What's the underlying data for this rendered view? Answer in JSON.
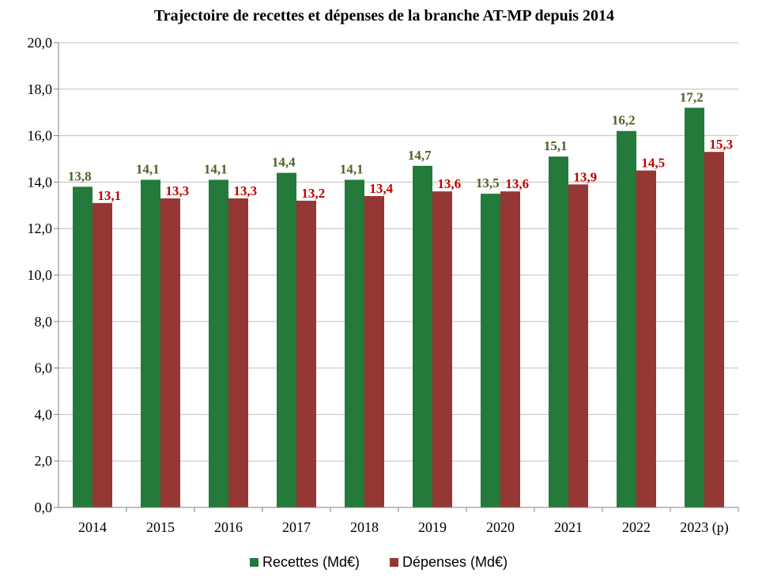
{
  "chart_data": {
    "type": "bar",
    "title": "Trajectoire de recettes et dépenses de la branche AT-MP depuis 2014",
    "categories": [
      "2014",
      "2015",
      "2016",
      "2017",
      "2018",
      "2019",
      "2020",
      "2021",
      "2022",
      "2023 (p)"
    ],
    "series": [
      {
        "name": "Recettes (Md€)",
        "color": "#237A3A",
        "label_color": "#4F6228",
        "values": [
          13.8,
          14.1,
          14.1,
          14.4,
          14.1,
          14.7,
          13.5,
          15.1,
          16.2,
          17.2
        ],
        "labels": [
          "13,8",
          "14,1",
          "14,1",
          "14,4",
          "14,1",
          "14,7",
          "13,5",
          "15,1",
          "16,2",
          "17,2"
        ]
      },
      {
        "name": "Dépenses (Md€)",
        "color": "#953735",
        "label_color": "#C00000",
        "values": [
          13.1,
          13.3,
          13.3,
          13.2,
          13.4,
          13.6,
          13.6,
          13.9,
          14.5,
          15.3
        ],
        "labels": [
          "13,1",
          "13,3",
          "13,3",
          "13,2",
          "13,4",
          "13,6",
          "13,6",
          "13,9",
          "14,5",
          "15,3"
        ]
      }
    ],
    "ylim": [
      0,
      20
    ],
    "yticks": [
      "0,0",
      "2,0",
      "4,0",
      "6,0",
      "8,0",
      "10,0",
      "12,0",
      "14,0",
      "16,0",
      "18,0",
      "20,0"
    ],
    "grid": true,
    "legend": "bottom",
    "xlabel": "",
    "ylabel": ""
  }
}
